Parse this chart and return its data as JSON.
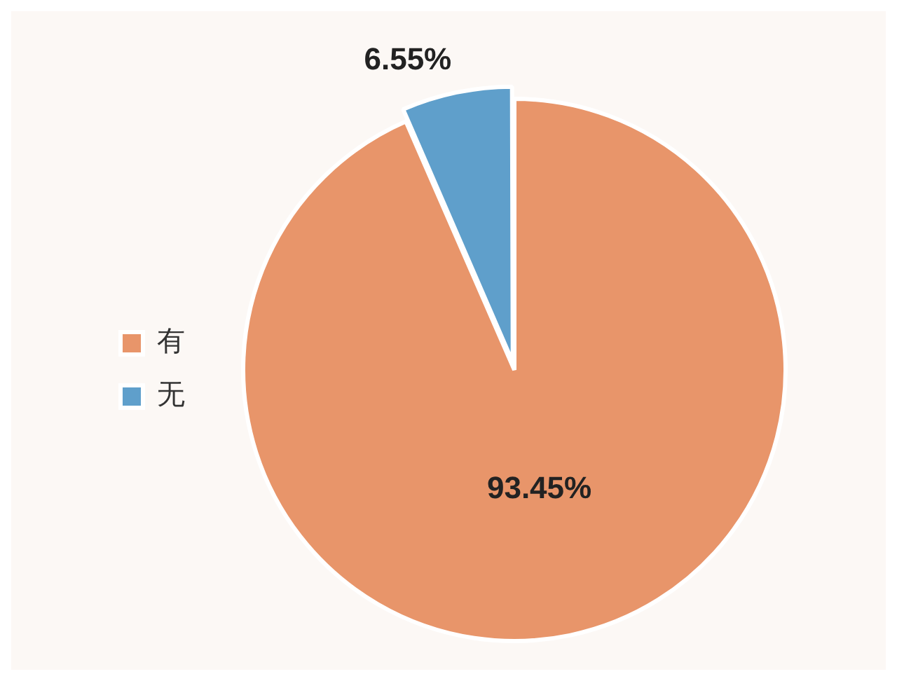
{
  "chart_data": {
    "type": "pie",
    "categories": [
      "有",
      "无"
    ],
    "values": [
      93.45,
      6.55
    ],
    "colors": [
      "#e8956a",
      "#5f9fcb"
    ],
    "value_labels": [
      "93.45%",
      "6.55%"
    ],
    "legend": "left"
  }
}
